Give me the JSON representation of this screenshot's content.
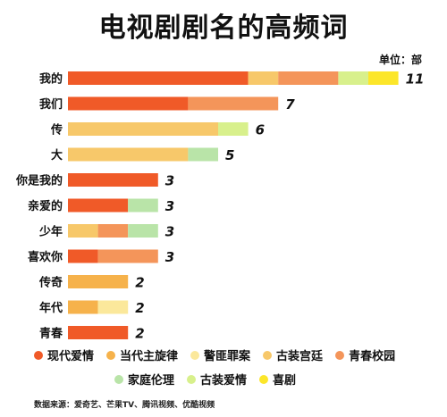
{
  "title": "电视剧剧名的高频词",
  "unit_label": "单位：部",
  "source_note": "数据来源：爱奇艺、芒果TV、腾讯视频、优酷视频",
  "colors": {
    "现代爱情": "#F05A28",
    "当代主旋律": "#F6B24B",
    "警匪罪案": "#FBE89B",
    "古装宫廷": "#F7C86A",
    "青春校园": "#F4955A",
    "家庭伦理": "#B9E4A8",
    "古装爱情": "#D8F08C",
    "喜剧": "#FCE62A"
  },
  "legend": [
    [
      "现代爱情",
      "当代主旋律",
      "警匪罪案",
      "古装宫廷",
      "青春校园"
    ],
    [
      "家庭伦理",
      "古装爱情",
      "喜剧"
    ]
  ],
  "chart_data": {
    "type": "bar",
    "orientation": "horizontal",
    "stacked": true,
    "title": "电视剧剧名的高频词",
    "categories": [
      "我的",
      "我们",
      "传",
      "大",
      "你是我的",
      "亲爱的",
      "少年",
      "喜欢你",
      "传奇",
      "年代",
      "青春"
    ],
    "totals": [
      11,
      7,
      6,
      5,
      3,
      3,
      3,
      3,
      2,
      2,
      2
    ],
    "series": [
      {
        "name": "现代爱情",
        "values": [
          6,
          4,
          0,
          0,
          3,
          2,
          0,
          1,
          0,
          0,
          2
        ]
      },
      {
        "name": "当代主旋律",
        "values": [
          0,
          0,
          0,
          0,
          0,
          0,
          0,
          0,
          2,
          1,
          0
        ]
      },
      {
        "name": "警匪罪案",
        "values": [
          0,
          0,
          0,
          0,
          0,
          0,
          0,
          0,
          0,
          1,
          0
        ]
      },
      {
        "name": "古装宫廷",
        "values": [
          1,
          0,
          5,
          4,
          0,
          0,
          1,
          0,
          0,
          0,
          0
        ]
      },
      {
        "name": "青春校园",
        "values": [
          2,
          3,
          0,
          0,
          0,
          0,
          1,
          2,
          0,
          0,
          0
        ]
      },
      {
        "name": "家庭伦理",
        "values": [
          0,
          0,
          0,
          1,
          0,
          1,
          1,
          0,
          0,
          0,
          0
        ]
      },
      {
        "name": "古装爱情",
        "values": [
          1,
          0,
          1,
          0,
          0,
          0,
          0,
          0,
          0,
          0,
          0
        ]
      },
      {
        "name": "喜剧",
        "values": [
          1,
          0,
          0,
          0,
          0,
          0,
          0,
          0,
          0,
          0,
          0
        ]
      }
    ],
    "xlim": [
      0,
      11
    ],
    "grid": false,
    "legend_position": "bottom"
  }
}
